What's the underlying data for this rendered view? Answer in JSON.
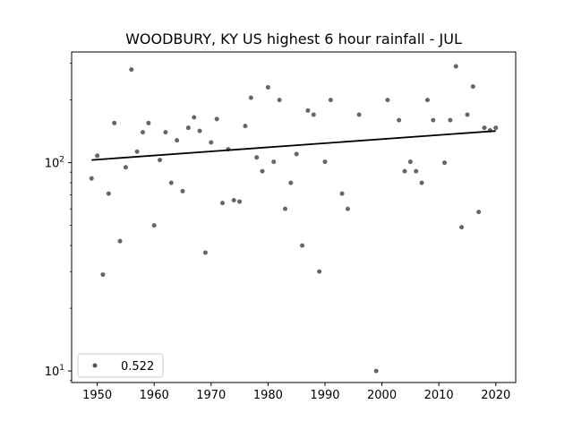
{
  "chart_data": {
    "type": "scatter",
    "title": "WOODBURY, KY US highest 6 hour rainfall - JUL",
    "xlabel": "",
    "ylabel": "",
    "y_scale": "log",
    "xlim": [
      1945.5,
      2023.5
    ],
    "ylim": [
      8.8,
      340
    ],
    "x_ticks": [
      1950,
      1960,
      1970,
      1980,
      1990,
      2000,
      2010,
      2020
    ],
    "y_ticks": [
      {
        "value": 10,
        "label": "10",
        "sup": "1"
      },
      {
        "value": 100,
        "label": "10",
        "sup": "2"
      }
    ],
    "grid": false,
    "legend": {
      "position": "lower-left",
      "entries": [
        "0.522"
      ]
    },
    "point_color": "#555555",
    "line_color": "#000000",
    "series": [
      {
        "x": [
          1949,
          1950,
          1951,
          1952,
          1953,
          1954,
          1955,
          1956,
          1957,
          1958,
          1959,
          1960,
          1961,
          1962,
          1963,
          1964,
          1965,
          1966,
          1967,
          1968,
          1969,
          1970,
          1971,
          1972,
          1973,
          1974,
          1975,
          1976,
          1977,
          1978,
          1979,
          1980,
          1981,
          1982,
          1983,
          1984,
          1985,
          1986,
          1987,
          1988,
          1989,
          1990,
          1991,
          1993,
          1994,
          1996,
          1999,
          2001,
          2003,
          2004,
          2005,
          2006,
          2007,
          2008,
          2009,
          2011,
          2012,
          2013,
          2014,
          2015,
          2016,
          2017,
          2018,
          2019,
          2020
        ],
        "y": [
          84,
          108,
          29,
          71,
          155,
          42,
          95,
          280,
          113,
          140,
          155,
          50,
          103,
          140,
          80,
          128,
          73,
          147,
          165,
          142,
          37,
          125,
          162,
          64,
          116,
          66,
          65,
          150,
          205,
          106,
          91,
          230,
          101,
          200,
          60,
          80,
          110,
          40,
          178,
          170,
          30,
          101,
          200,
          71,
          60,
          170,
          10,
          200,
          160,
          91,
          101,
          91,
          80,
          200,
          160,
          100,
          160,
          290,
          49,
          170,
          232,
          58,
          147,
          143,
          147
        ]
      }
    ],
    "trend": {
      "x": [
        1949,
        2020
      ],
      "y": [
        103,
        142
      ]
    }
  }
}
